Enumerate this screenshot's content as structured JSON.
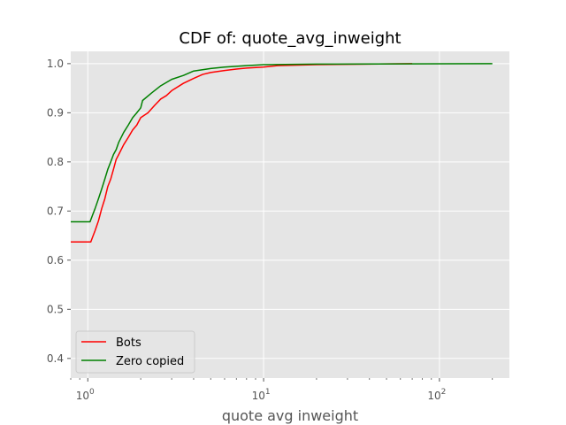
{
  "chart_data": {
    "type": "line",
    "title": "CDF of: quote_avg_inweight",
    "xlabel": "quote avg inweight",
    "ylabel": "",
    "xscale": "log",
    "xlim": [
      0.8,
      250
    ],
    "ylim": [
      0.36,
      1.025
    ],
    "grid": true,
    "legend_position": "lower-left",
    "x_major_ticks": [
      {
        "value": 1,
        "base": "10",
        "exp": "0"
      },
      {
        "value": 10,
        "base": "10",
        "exp": "1"
      },
      {
        "value": 100,
        "base": "10",
        "exp": "2"
      }
    ],
    "y_ticks": [
      {
        "value": 0.4,
        "label": "0.4"
      },
      {
        "value": 0.5,
        "label": "0.5"
      },
      {
        "value": 0.6,
        "label": "0.6"
      },
      {
        "value": 0.7,
        "label": "0.7"
      },
      {
        "value": 0.8,
        "label": "0.8"
      },
      {
        "value": 0.9,
        "label": "0.9"
      },
      {
        "value": 1.0,
        "label": "1.0"
      }
    ],
    "series": [
      {
        "name": "Bots",
        "color": "#ff0000",
        "points": [
          [
            0.8,
            0.637
          ],
          [
            1.0,
            0.637
          ],
          [
            1.04,
            0.637
          ],
          [
            1.06,
            0.645
          ],
          [
            1.1,
            0.66
          ],
          [
            1.15,
            0.68
          ],
          [
            1.2,
            0.705
          ],
          [
            1.25,
            0.725
          ],
          [
            1.3,
            0.75
          ],
          [
            1.35,
            0.765
          ],
          [
            1.4,
            0.785
          ],
          [
            1.45,
            0.805
          ],
          [
            1.5,
            0.815
          ],
          [
            1.6,
            0.835
          ],
          [
            1.7,
            0.85
          ],
          [
            1.8,
            0.865
          ],
          [
            1.9,
            0.875
          ],
          [
            2.0,
            0.89
          ],
          [
            2.2,
            0.9
          ],
          [
            2.4,
            0.915
          ],
          [
            2.6,
            0.928
          ],
          [
            2.8,
            0.935
          ],
          [
            3.0,
            0.945
          ],
          [
            3.5,
            0.96
          ],
          [
            4.0,
            0.97
          ],
          [
            4.5,
            0.978
          ],
          [
            5.0,
            0.982
          ],
          [
            6.0,
            0.986
          ],
          [
            7.0,
            0.989
          ],
          [
            8.0,
            0.991
          ],
          [
            10.0,
            0.993
          ],
          [
            12.0,
            0.996
          ],
          [
            20.0,
            0.998
          ],
          [
            40.0,
            0.999
          ],
          [
            70.0,
            1.0
          ]
        ]
      },
      {
        "name": "Zero copied",
        "color": "#008000",
        "points": [
          [
            0.8,
            0.678
          ],
          [
            1.0,
            0.678
          ],
          [
            1.03,
            0.678
          ],
          [
            1.06,
            0.69
          ],
          [
            1.1,
            0.705
          ],
          [
            1.15,
            0.725
          ],
          [
            1.2,
            0.745
          ],
          [
            1.25,
            0.765
          ],
          [
            1.3,
            0.785
          ],
          [
            1.35,
            0.8
          ],
          [
            1.4,
            0.815
          ],
          [
            1.45,
            0.825
          ],
          [
            1.5,
            0.84
          ],
          [
            1.6,
            0.86
          ],
          [
            1.7,
            0.875
          ],
          [
            1.8,
            0.89
          ],
          [
            1.9,
            0.9
          ],
          [
            2.0,
            0.91
          ],
          [
            2.05,
            0.925
          ],
          [
            2.3,
            0.94
          ],
          [
            2.6,
            0.955
          ],
          [
            3.0,
            0.968
          ],
          [
            3.5,
            0.976
          ],
          [
            4.0,
            0.985
          ],
          [
            5.0,
            0.99
          ],
          [
            6.0,
            0.993
          ],
          [
            8.0,
            0.996
          ],
          [
            10.0,
            0.998
          ],
          [
            20.0,
            0.999
          ],
          [
            200.0,
            1.0
          ]
        ]
      }
    ]
  }
}
